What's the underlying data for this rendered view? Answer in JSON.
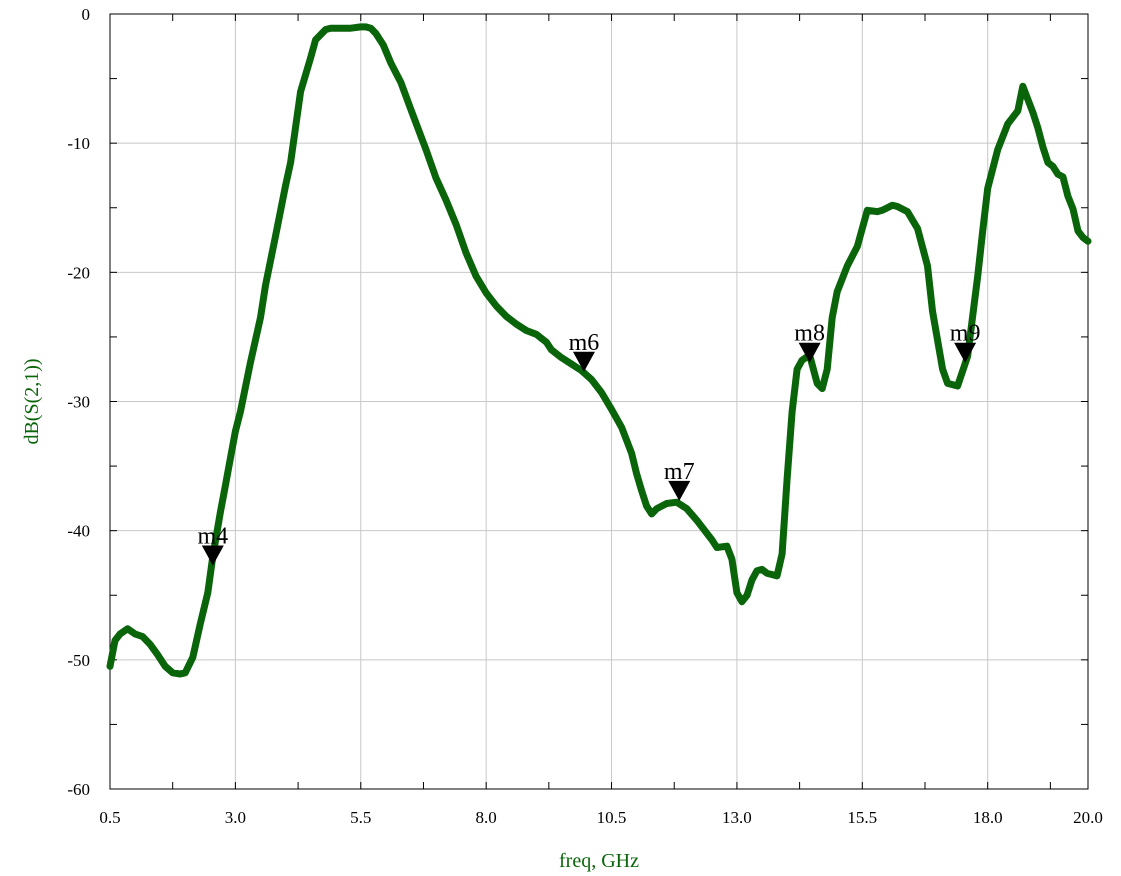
{
  "chart_data": {
    "type": "line",
    "xlabel": "freq, GHz",
    "ylabel": "dB(S(2,1))",
    "xlim": [
      0.5,
      20.0
    ],
    "ylim": [
      -60,
      0
    ],
    "x_ticks": [
      0.5,
      3.0,
      5.5,
      8.0,
      10.5,
      13.0,
      15.5,
      18.0,
      20.0
    ],
    "x_tick_labels": [
      "0.5",
      "3.0",
      "5.5",
      "8.0",
      "10.5",
      "13.0",
      "15.5",
      "18.0",
      "20.0"
    ],
    "y_ticks": [
      0,
      -10,
      -20,
      -30,
      -40,
      -50,
      -60
    ],
    "y_tick_labels": [
      "0",
      "-10",
      "-20",
      "-30",
      "-40",
      "-50",
      "-60"
    ],
    "grid": true,
    "colors": {
      "trace": "#0a640a",
      "axis_label": "#0a640a",
      "grid": "#c8c8c8"
    },
    "series": [
      {
        "x": [
          0.5,
          0.6,
          0.7,
          0.85,
          1.0,
          1.15,
          1.3,
          1.45,
          1.6,
          1.75,
          1.9,
          2.0,
          2.15,
          2.3,
          2.45,
          2.55,
          2.7,
          2.8,
          2.9,
          3.0,
          3.1,
          3.3,
          3.5,
          3.6,
          3.8,
          4.0,
          4.1,
          4.3,
          4.5,
          4.6,
          4.8,
          4.9,
          5.0,
          5.1,
          5.3,
          5.5,
          5.6,
          5.7,
          5.8,
          5.95,
          6.1,
          6.3,
          6.5,
          6.8,
          7.0,
          7.2,
          7.4,
          7.6,
          7.8,
          8.0,
          8.2,
          8.4,
          8.6,
          8.8,
          9.0,
          9.1,
          9.2,
          9.3,
          9.5,
          9.7,
          9.9,
          10.1,
          10.3,
          10.5,
          10.7,
          10.9,
          11.0,
          11.1,
          11.2,
          11.3,
          11.4,
          11.6,
          11.8,
          12.0,
          12.2,
          12.4,
          12.5,
          12.6,
          12.8,
          12.9,
          13.0,
          13.1,
          13.2,
          13.3,
          13.4,
          13.5,
          13.6,
          13.8,
          13.9,
          14.0,
          14.1,
          14.2,
          14.3,
          14.45,
          14.6,
          14.7,
          14.8,
          14.9,
          15.0,
          15.2,
          15.4,
          15.6,
          15.8,
          15.9,
          16.1,
          16.2,
          16.4,
          16.6,
          16.8,
          16.9,
          17.1,
          17.2,
          17.4,
          17.6,
          17.8,
          17.9,
          18.0,
          18.2,
          18.4,
          18.6,
          18.7,
          18.9,
          19.0,
          19.1,
          19.2,
          19.3,
          19.4,
          19.5,
          19.6,
          19.7,
          19.8,
          19.9,
          20.0
        ],
        "y": [
          -50.5,
          -48.5,
          -48.0,
          -47.6,
          -48.0,
          -48.2,
          -48.8,
          -49.6,
          -50.5,
          -51.0,
          -51.1,
          -51.0,
          -49.8,
          -47.2,
          -44.8,
          -42.0,
          -38.6,
          -36.5,
          -34.4,
          -32.3,
          -30.8,
          -27.0,
          -23.5,
          -21.0,
          -17.2,
          -13.3,
          -11.5,
          -6.0,
          -3.4,
          -2.0,
          -1.2,
          -1.1,
          -1.1,
          -1.1,
          -1.1,
          -1.0,
          -1.0,
          -1.1,
          -1.5,
          -2.4,
          -3.8,
          -5.3,
          -7.4,
          -10.5,
          -12.7,
          -14.4,
          -16.3,
          -18.5,
          -20.3,
          -21.6,
          -22.6,
          -23.4,
          -24.0,
          -24.5,
          -24.8,
          -25.1,
          -25.4,
          -26.0,
          -26.6,
          -27.1,
          -27.6,
          -28.3,
          -29.3,
          -30.6,
          -32.0,
          -34.0,
          -35.6,
          -36.9,
          -38.1,
          -38.7,
          -38.3,
          -37.9,
          -37.8,
          -38.3,
          -39.2,
          -40.2,
          -40.7,
          -41.3,
          -41.2,
          -42.2,
          -44.8,
          -45.5,
          -45.0,
          -43.8,
          -43.1,
          -43.0,
          -43.3,
          -43.5,
          -41.8,
          -36.0,
          -30.8,
          -27.5,
          -26.8,
          -26.4,
          -28.6,
          -29.0,
          -27.5,
          -23.5,
          -21.5,
          -19.5,
          -18.0,
          -15.2,
          -15.3,
          -15.2,
          -14.8,
          -14.9,
          -15.3,
          -16.6,
          -19.5,
          -23.0,
          -27.5,
          -28.6,
          -28.8,
          -26.5,
          -20.3,
          -16.8,
          -13.5,
          -10.5,
          -8.5,
          -7.5,
          -5.6,
          -7.6,
          -8.8,
          -10.3,
          -11.5,
          -11.8,
          -12.4,
          -12.6,
          -14.1,
          -15.1,
          -16.8,
          -17.3,
          -17.6
        ]
      }
    ],
    "markers": [
      {
        "label": "m4",
        "x": 2.55,
        "y": -42.0
      },
      {
        "label": "m6",
        "x": 9.95,
        "y": -27.0
      },
      {
        "label": "m7",
        "x": 11.85,
        "y": -37.0
      },
      {
        "label": "m8",
        "x": 14.45,
        "y": -26.3
      },
      {
        "label": "m9",
        "x": 17.55,
        "y": -26.3
      }
    ]
  }
}
